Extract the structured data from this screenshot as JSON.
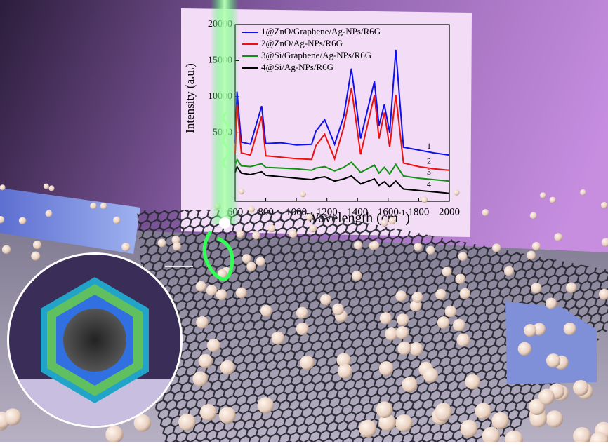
{
  "chart_data": {
    "type": "line",
    "x_label": "Wavelength (cm",
    "x_label_sup": "-1",
    "x_label_end": ")",
    "y_label": "Intensity (a.u.)",
    "x": [
      600,
      612,
      640,
      700,
      773,
      800,
      900,
      1000,
      1100,
      1127,
      1185,
      1250,
      1310,
      1360,
      1420,
      1510,
      1540,
      1575,
      1610,
      1650,
      1700,
      1800,
      1900,
      2000
    ],
    "series": [
      {
        "name": "1@ZnO/Graphene/Ag-NPs/R6G",
        "color": "#1010ee",
        "values": [
          3500,
          10700,
          3700,
          3400,
          8700,
          3500,
          3600,
          3300,
          3400,
          5200,
          6800,
          3400,
          7300,
          13900,
          4200,
          12100,
          6000,
          8900,
          5000,
          16500,
          3000,
          2600,
          2200,
          1900
        ]
      },
      {
        "name": "2@ZnO/Ag-NPs/R6G",
        "color": "#ee1010",
        "values": [
          2100,
          8900,
          2200,
          1900,
          7300,
          1800,
          1600,
          1400,
          1300,
          3200,
          4800,
          1400,
          5800,
          11200,
          2000,
          10200,
          4200,
          7800,
          3000,
          10200,
          800,
          300,
          0,
          -200
        ]
      },
      {
        "name": "3@Si/Graphene/Ag-NPs/R6G",
        "color": "#109010",
        "values": [
          500,
          1300,
          400,
          300,
          700,
          200,
          100,
          0,
          -200,
          100,
          300,
          -300,
          200,
          900,
          -500,
          500,
          -600,
          200,
          -700,
          600,
          -1000,
          -1300,
          -1500,
          -1700
        ]
      },
      {
        "name": "4@Si/Ag-NPs/R6G",
        "color": "#000000",
        "values": [
          -500,
          300,
          -600,
          -800,
          -400,
          -900,
          -1100,
          -1300,
          -1500,
          -1300,
          -1100,
          -1700,
          -1400,
          -1000,
          -2100,
          -1400,
          -2300,
          -1800,
          -2500,
          -1700,
          -2800,
          -3000,
          -3200,
          -3400
        ]
      }
    ],
    "annotations": [
      "1",
      "2",
      "3",
      "4"
    ],
    "xlim": [
      600,
      2000
    ],
    "xticks": [
      600,
      800,
      1000,
      1200,
      1400,
      1600,
      1800,
      2000
    ],
    "ylim": [
      -4500,
      20000
    ],
    "yticks": [
      5000,
      10000,
      15000,
      20000
    ]
  }
}
